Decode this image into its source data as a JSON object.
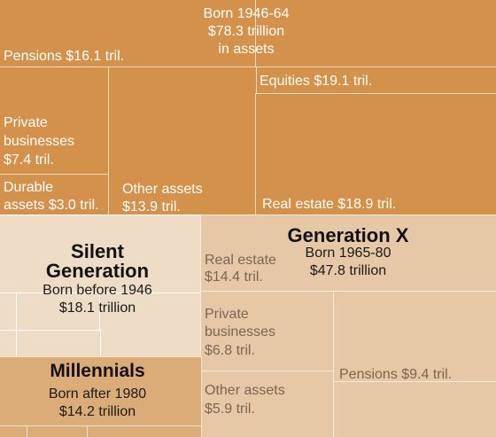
{
  "chart_data": {
    "type": "treemap",
    "groups": [
      {
        "name": "",
        "subtitle": "Born 1946-64",
        "total": "$78.3 trillion",
        "total_suffix": "in assets",
        "color": "#d3914b",
        "items": [
          {
            "label": "Pensions $16.1 tril.",
            "value": 16.1
          },
          {
            "label": "Private businesses $7.4 tril.",
            "value": 7.4
          },
          {
            "label": "Durable assets $3.0 tril.",
            "value": 3.0
          },
          {
            "label": "Other assets $13.9 tril.",
            "value": 13.9
          },
          {
            "label": "Equities $19.1 tril.",
            "value": 19.1
          },
          {
            "label": "Real estate $18.9 tril.",
            "value": 18.9
          }
        ]
      },
      {
        "name": "Silent Generation",
        "subtitle": "Born before 1946",
        "total": "$18.1 trillion",
        "color": "#eedcc6"
      },
      {
        "name": "Generation X",
        "subtitle": "Born 1965-80",
        "total": "$47.8 trillion",
        "color": "#e6c8a6",
        "items": [
          {
            "label": "Real estate $14.4 tril.",
            "value": 14.4
          },
          {
            "label": "Private businesses $6.8 tril.",
            "value": 6.8
          },
          {
            "label": "Other assets $5.9 tril.",
            "value": 5.9
          },
          {
            "label": "Pensions $9.4 tril.",
            "value": 9.4
          }
        ]
      },
      {
        "name": "Millennials",
        "subtitle": "Born after 1980",
        "total": "$14.2 trillion",
        "color": "#dcac78"
      }
    ]
  },
  "labels": {
    "boomer_born": "Born 1946-64",
    "boomer_total": "$78.3 trillion",
    "boomer_total_suffix": "in assets",
    "boomer_pensions": "Pensions $16.1 tril.",
    "boomer_private_l1": "Private",
    "boomer_private_l2": "businesses",
    "boomer_private_l3": "$7.4 tril.",
    "boomer_durable_l1": "Durable",
    "boomer_durable_l2": "assets $3.0 tril.",
    "boomer_other_l1": "Other assets",
    "boomer_other_l2": "$13.9 tril.",
    "boomer_equities": "Equities $19.1 tril.",
    "boomer_realestate": "Real estate $18.9 tril.",
    "silent_name_l1": "Silent",
    "silent_name_l2": "Generation",
    "silent_born": "Born before 1946",
    "silent_total": "$18.1 trillion",
    "genx_name": "Generation X",
    "genx_born": "Born 1965-80",
    "genx_total": "$47.8 trillion",
    "genx_realestate_l1": "Real estate",
    "genx_realestate_l2": "$14.4 tril.",
    "genx_private_l1": "Private",
    "genx_private_l2": "businesses",
    "genx_private_l3": "$6.8 tril.",
    "genx_other_l1": "Other assets",
    "genx_other_l2": "$5.9 tril.",
    "genx_pensions": "Pensions $9.4 tril.",
    "millen_name": "Millennials",
    "millen_born": "Born after 1980",
    "millen_total": "$14.2 trillion"
  }
}
